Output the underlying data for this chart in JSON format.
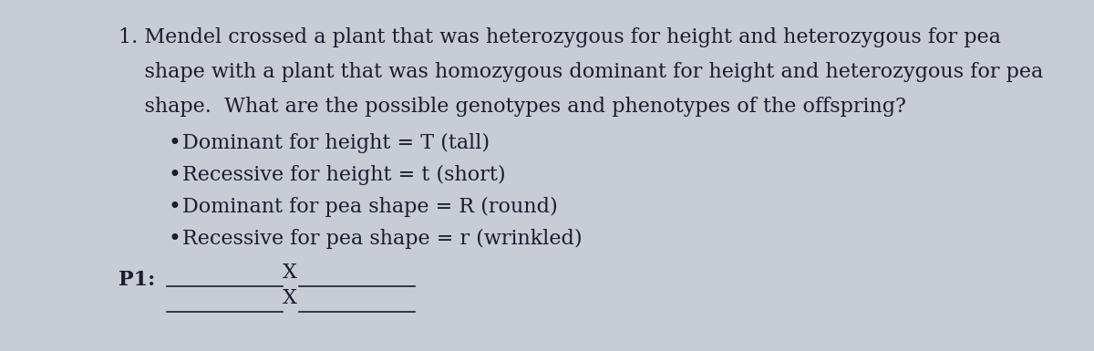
{
  "bg_color": "#c8ccd4",
  "text_color": "#1c1c2e",
  "line1": "1. Mendel crossed a plant that was heterozygous for height and heterozygous for pea",
  "line2": "    shape with a plant that was homozygous dominant for height and heterozygous for pea",
  "line3": "    shape.  What are the possible genotypes and phenotypes of the offspring?",
  "bullet1": "Dominant for height = T (tall)",
  "bullet2": "Recessive for height = t (short)",
  "bullet3": "Dominant for pea shape = R (round)",
  "bullet4": "Recessive for pea shape = r (wrinkled)",
  "p1_label": "P1:",
  "x_label": "X",
  "font_size": 16,
  "font_family": "DejaVu Serif"
}
